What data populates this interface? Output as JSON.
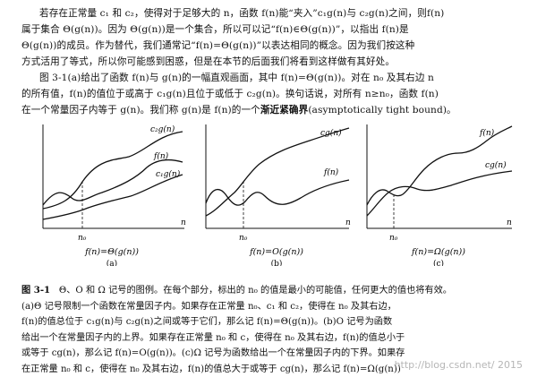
{
  "paragraph1": {
    "lines": [
      "若存在正常量 c₁ 和 c₂，使得对于足够大的 n，函数 f(n)能“夹入”c₁g(n)与 c₂g(n)之间，则f(n)",
      "属于集合 Θ(g(n))。因为 Θ(g(n))是一个集合，所以可以记“f(n)∈Θ(g(n))”，以指出 f(n)是",
      "Θ(g(n))的成员。作为替代，我们通常记“f(n)=Θ(g(n))”以表达相同的概念。因为我们按这种",
      "方式活用了等式，所以你可能感到困惑，但是在本节的后面我们将看到这样做有其好处。"
    ]
  },
  "paragraph2": {
    "lines": [
      "图 3-1(a)给出了函数 f(n)与 g(n)的一幅直观画面，其中 f(n)=Θ(g(n))。对在 n₀ 及其右边 n",
      "的所有值，f(n)的值位于或高于 c₁g(n)且位于或低于 c₂g(n)。换句话说，对所有 n≥n₀，函数 f(n)"
    ],
    "last_line_prefix": "在一个常量因子内等于 g(n)。我们称 g(n)是 f(n)的一个",
    "last_line_bold": "渐近紧确界",
    "last_line_suffix": "(asymptotically tight bound)。"
  },
  "figure": {
    "panels": [
      {
        "curve_labels": [
          "c₂g(n)",
          "f(n)",
          "c₁g(n)"
        ],
        "axis_label": "n",
        "n0_label": "n₀",
        "formula": "f(n)=Θ(g(n))",
        "tag": "(a)"
      },
      {
        "curve_labels": [
          "cg(n)",
          "f(n)"
        ],
        "axis_label": "n",
        "n0_label": "n₀",
        "formula": "f(n)=O(g(n))",
        "tag": "(b)"
      },
      {
        "curve_labels": [
          "f(n)",
          "cg(n)"
        ],
        "axis_label": "n",
        "n0_label": "n₀",
        "formula": "f(n)=Ω(g(n))",
        "tag": "(c)"
      }
    ]
  },
  "caption": {
    "head": "图 3-1",
    "lines": [
      "Θ、O 和 Ω 记号的图例。在每个部分，标出的 n₀ 的值是最小的可能值，任何更大的值也将有效。",
      "(a)Θ 记号限制一个函数在常量因子内。如果存在正常量 n₀、c₁ 和 c₂，使得在 n₀ 及其右边，",
      "f(n)的值总位于 c₁g(n)与 c₂g(n)之间或等于它们，那么记 f(n)=Θ(g(n))。(b)O 记号为函数",
      "给出一个在常量因子内的上界。如果存在正常量 n₀ 和 c，使得在 n₀ 及其右边，f(n)的值总小于",
      "或等于 cg(n)，那么记 f(n)=O(g(n))。(c)Ω 记号为函数给出一个在常量因子内的下界。如果存",
      "在正常量 n₀ 和 c，使得在 n₀ 及其右边，f(n)的值总大于或等于 cg(n)，那么记 f(n)=Ω(g(n))"
    ]
  },
  "watermark": "http://blog.csdn.net/ 2015"
}
